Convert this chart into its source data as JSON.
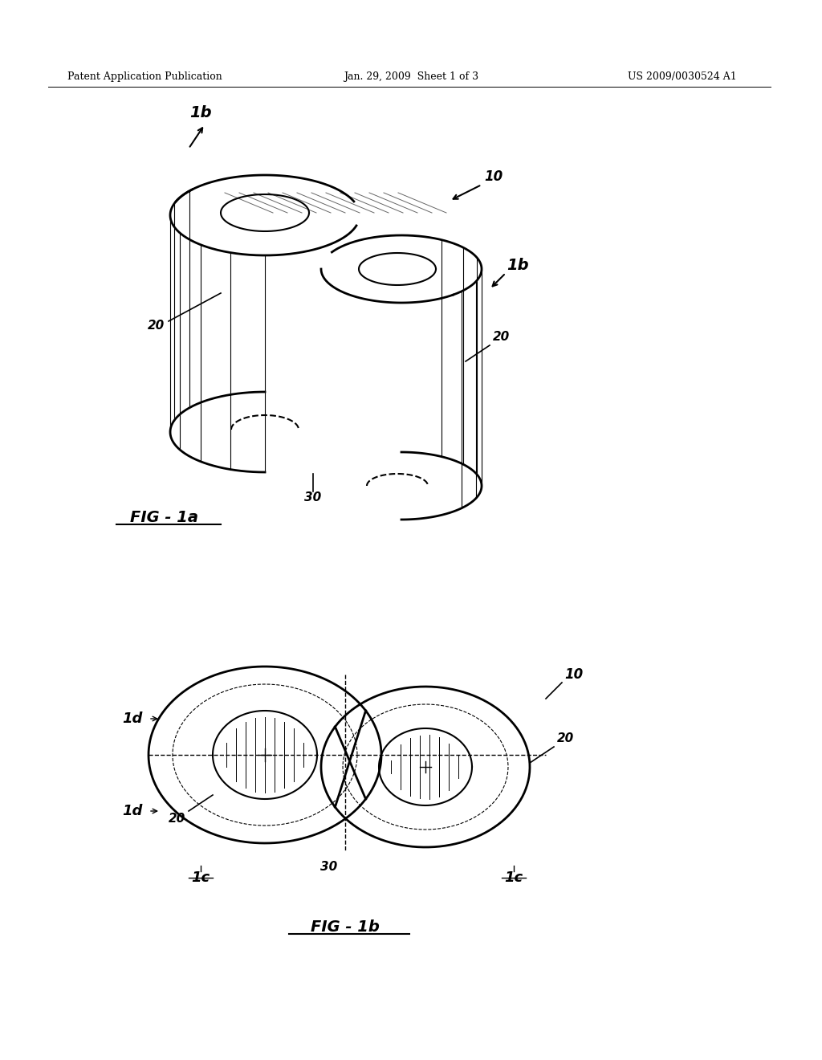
{
  "header_left": "Patent Application Publication",
  "header_mid": "Jan. 29, 2009  Sheet 1 of 3",
  "header_right": "US 2009/0030524 A1",
  "fig1a_label": "FIG - 1a",
  "fig1b_label": "FIG - 1b",
  "bg_color": "#ffffff",
  "line_color": "#000000",
  "label_10_fig1a": "10",
  "label_20_fig1a_left": "20",
  "label_20_fig1a_right": "20",
  "label_30_fig1a": "30",
  "label_1b_top": "1b",
  "label_1b_right": "1b",
  "label_10_fig1b": "10",
  "label_20_fig1b_right": "20",
  "label_20_fig1b_left": "20",
  "label_30_fig1b": "30",
  "label_1c_left": "1c",
  "label_1c_right": "1c",
  "label_1d_top": "1d",
  "label_1d_bot": "1d"
}
